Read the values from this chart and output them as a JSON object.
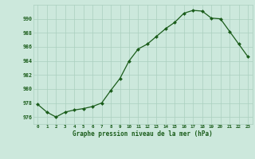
{
  "hours": [
    0,
    1,
    2,
    3,
    4,
    5,
    6,
    7,
    8,
    9,
    10,
    11,
    12,
    13,
    14,
    15,
    16,
    17,
    18,
    19,
    20,
    21,
    22,
    23
  ],
  "pressure": [
    977.8,
    976.7,
    976.0,
    976.7,
    977.0,
    977.2,
    977.5,
    978.0,
    979.8,
    981.5,
    984.0,
    985.7,
    986.4,
    987.5,
    988.6,
    989.5,
    990.8,
    991.2,
    991.1,
    990.1,
    990.0,
    988.2,
    986.4,
    984.6
  ],
  "line_color": "#1a5c1a",
  "marker_color": "#1a5c1a",
  "bg_color": "#cce8dc",
  "grid_color": "#aacfbf",
  "xlabel": "Graphe pression niveau de la mer (hPa)",
  "xlabel_color": "#1a5c1a",
  "tick_color": "#1a5c1a",
  "ylim": [
    975.0,
    992.0
  ],
  "yticks": [
    976,
    978,
    980,
    982,
    984,
    986,
    988,
    990
  ],
  "title": ""
}
